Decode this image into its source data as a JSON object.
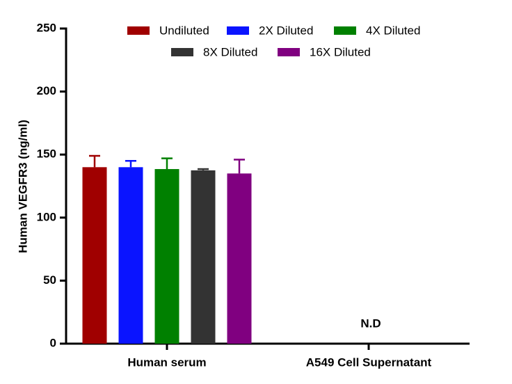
{
  "chart_data": {
    "type": "bar",
    "y_label": "Human VEGFR3 (ng/ml)",
    "categories": [
      "Human serum",
      "A549 Cell Supernatant"
    ],
    "series": [
      {
        "name": "Undiluted",
        "color": "#a00000",
        "values": [
          140,
          null
        ],
        "errors": [
          9,
          null
        ]
      },
      {
        "name": "2X Diluted",
        "color": "#0a14ff",
        "values": [
          140,
          null
        ],
        "errors": [
          5,
          null
        ]
      },
      {
        "name": "4X Diluted",
        "color": "#008000",
        "values": [
          138.5,
          null
        ],
        "errors": [
          8.5,
          null
        ]
      },
      {
        "name": "8X Diluted",
        "color": "#333333",
        "values": [
          137.5,
          null
        ],
        "errors": [
          1,
          null
        ]
      },
      {
        "name": "16X Diluted",
        "color": "#800080",
        "values": [
          135,
          null
        ],
        "errors": [
          11,
          null
        ]
      }
    ],
    "annotation": "N.D",
    "ylim": [
      0,
      250
    ],
    "yticks": [
      0,
      50,
      100,
      150,
      200,
      250
    ]
  }
}
